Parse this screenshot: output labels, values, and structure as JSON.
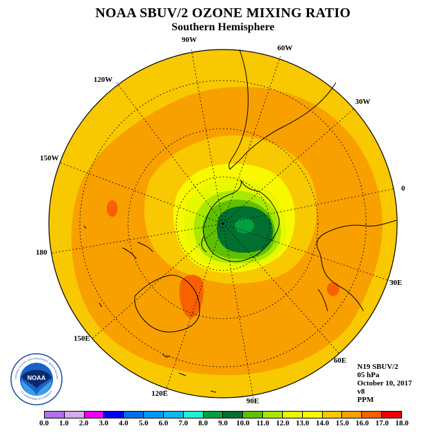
{
  "title": "NOAA SBUV/2 OZONE MIXING RATIO",
  "subtitle": "Southern Hemisphere",
  "longitude_labels": {
    "w90": "90W",
    "w60": "60W",
    "w30": "30W",
    "e0": "0",
    "w120": "120W",
    "w150": "150W",
    "l180": "180",
    "e30": "30E",
    "e60": "60E",
    "e90": "90E",
    "e120": "120E",
    "e150": "150E"
  },
  "info": {
    "instrument": "N19 SBUV/2",
    "level": "05 hPa",
    "date": "October 10, 2017",
    "version": "v8",
    "units": "PPM"
  },
  "logo_text": "NOAA",
  "logo_ring_text": "NATIONAL OCEANIC AND ATMOSPHERIC ADMINISTRATION",
  "logo_ring_text_bottom": "U.S. DEPARTMENT OF COMMERCE",
  "colorscale": {
    "ticks": [
      "0.0",
      "1.0",
      "2.0",
      "3.0",
      "4.0",
      "5.0",
      "6.0",
      "7.0",
      "8.0",
      "9.0",
      "10.0",
      "11.0",
      "12.0",
      "13.0",
      "14.0",
      "15.0",
      "16.0",
      "17.0",
      "18.0"
    ],
    "colors": [
      "#b36ff0",
      "#d8a8f0",
      "#f000f0",
      "#0000f0",
      "#0070e8",
      "#0098f0",
      "#10b8f0",
      "#20f0d0",
      "#00a040",
      "#007030",
      "#60c000",
      "#a8e800",
      "#e8f800",
      "#f8f800",
      "#f8c800",
      "#f8a000",
      "#f86000",
      "#f00000",
      "#a06040"
    ]
  }
}
